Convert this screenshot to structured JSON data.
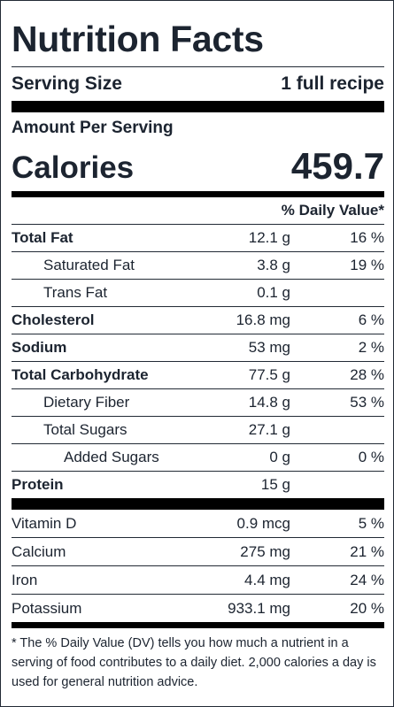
{
  "title": "Nutrition Facts",
  "serving": {
    "label": "Serving Size",
    "value": "1 full recipe"
  },
  "amount_per_serving": "Amount Per Serving",
  "calories": {
    "label": "Calories",
    "value": "459.7"
  },
  "dv_header": "% Daily Value*",
  "nutrients": [
    {
      "name": "Total Fat",
      "amount": "12.1 g",
      "dv": "16 %"
    },
    {
      "name": "Saturated Fat",
      "amount": "3.8 g",
      "dv": "19 %"
    },
    {
      "name": "Trans Fat",
      "amount": "0.1 g",
      "dv": ""
    },
    {
      "name": "Cholesterol",
      "amount": "16.8 mg",
      "dv": "6 %"
    },
    {
      "name": "Sodium",
      "amount": "53 mg",
      "dv": "2 %"
    },
    {
      "name": "Total Carbohydrate",
      "amount": "77.5 g",
      "dv": "28 %"
    },
    {
      "name": "Dietary Fiber",
      "amount": "14.8 g",
      "dv": "53 %"
    },
    {
      "name": "Total Sugars",
      "amount": "27.1 g",
      "dv": ""
    },
    {
      "name": "Added Sugars",
      "amount": "0 g",
      "dv": "0 %"
    },
    {
      "name": "Protein",
      "amount": "15 g",
      "dv": ""
    }
  ],
  "vitamins": [
    {
      "name": "Vitamin D",
      "amount": "0.9 mcg",
      "dv": "5 %"
    },
    {
      "name": "Calcium",
      "amount": "275 mg",
      "dv": "21 %"
    },
    {
      "name": "Iron",
      "amount": "4.4 mg",
      "dv": "24 %"
    },
    {
      "name": "Potassium",
      "amount": "933.1 mg",
      "dv": "20 %"
    }
  ],
  "footnote": "* The % Daily Value (DV) tells you how much a nutrient in a serving of food contributes to a daily diet. 2,000 calories a day is used for general nutrition advice."
}
